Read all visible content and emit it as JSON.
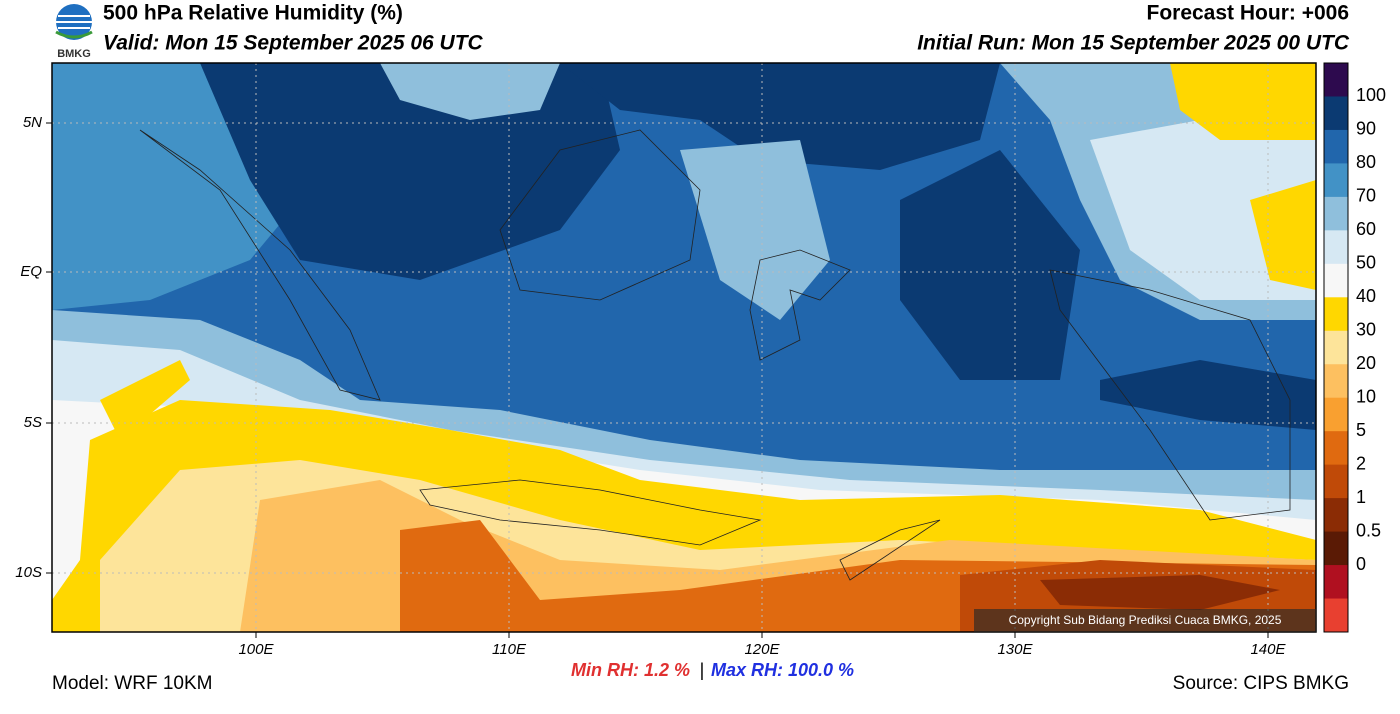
{
  "header": {
    "logo": "BMKG",
    "title": "500 hPa Relative Humidity (%)",
    "valid": "Valid: Mon 15 September 2025 06 UTC",
    "forecast_hour": "Forecast Hour: +006",
    "initial_run": "Initial Run: Mon 15 September 2025 00 UTC"
  },
  "map": {
    "lat_labels": [
      "5N",
      "EQ",
      "5S",
      "10S"
    ],
    "lon_labels": [
      "100E",
      "110E",
      "120E",
      "130E",
      "140E"
    ],
    "copyright": "Copyright Sub Bidang Prediksi Cuaca BMKG, 2025"
  },
  "colorbar": {
    "colors": [
      "#2d0a4e",
      "#0b3a72",
      "#2166ac",
      "#4292c6",
      "#8fbfdc",
      "#d6e8f3",
      "#f7f7f7",
      "#ffd700",
      "#fde49a",
      "#fdc060",
      "#f9a030",
      "#e06a10",
      "#c04a08",
      "#8b2c05",
      "#5a1a05",
      "#b01020",
      "#e84030"
    ],
    "labels": [
      "100",
      "90",
      "80",
      "70",
      "60",
      "50",
      "40",
      "30",
      "20",
      "10",
      "5",
      "2",
      "1",
      "0.5",
      "0"
    ]
  },
  "footer": {
    "model": "Model: WRF 10KM",
    "min_rh": "Min RH:   1.2 %",
    "separator": "|",
    "max_rh": "Max RH: 100.0 %",
    "source": "Source: CIPS BMKG"
  }
}
